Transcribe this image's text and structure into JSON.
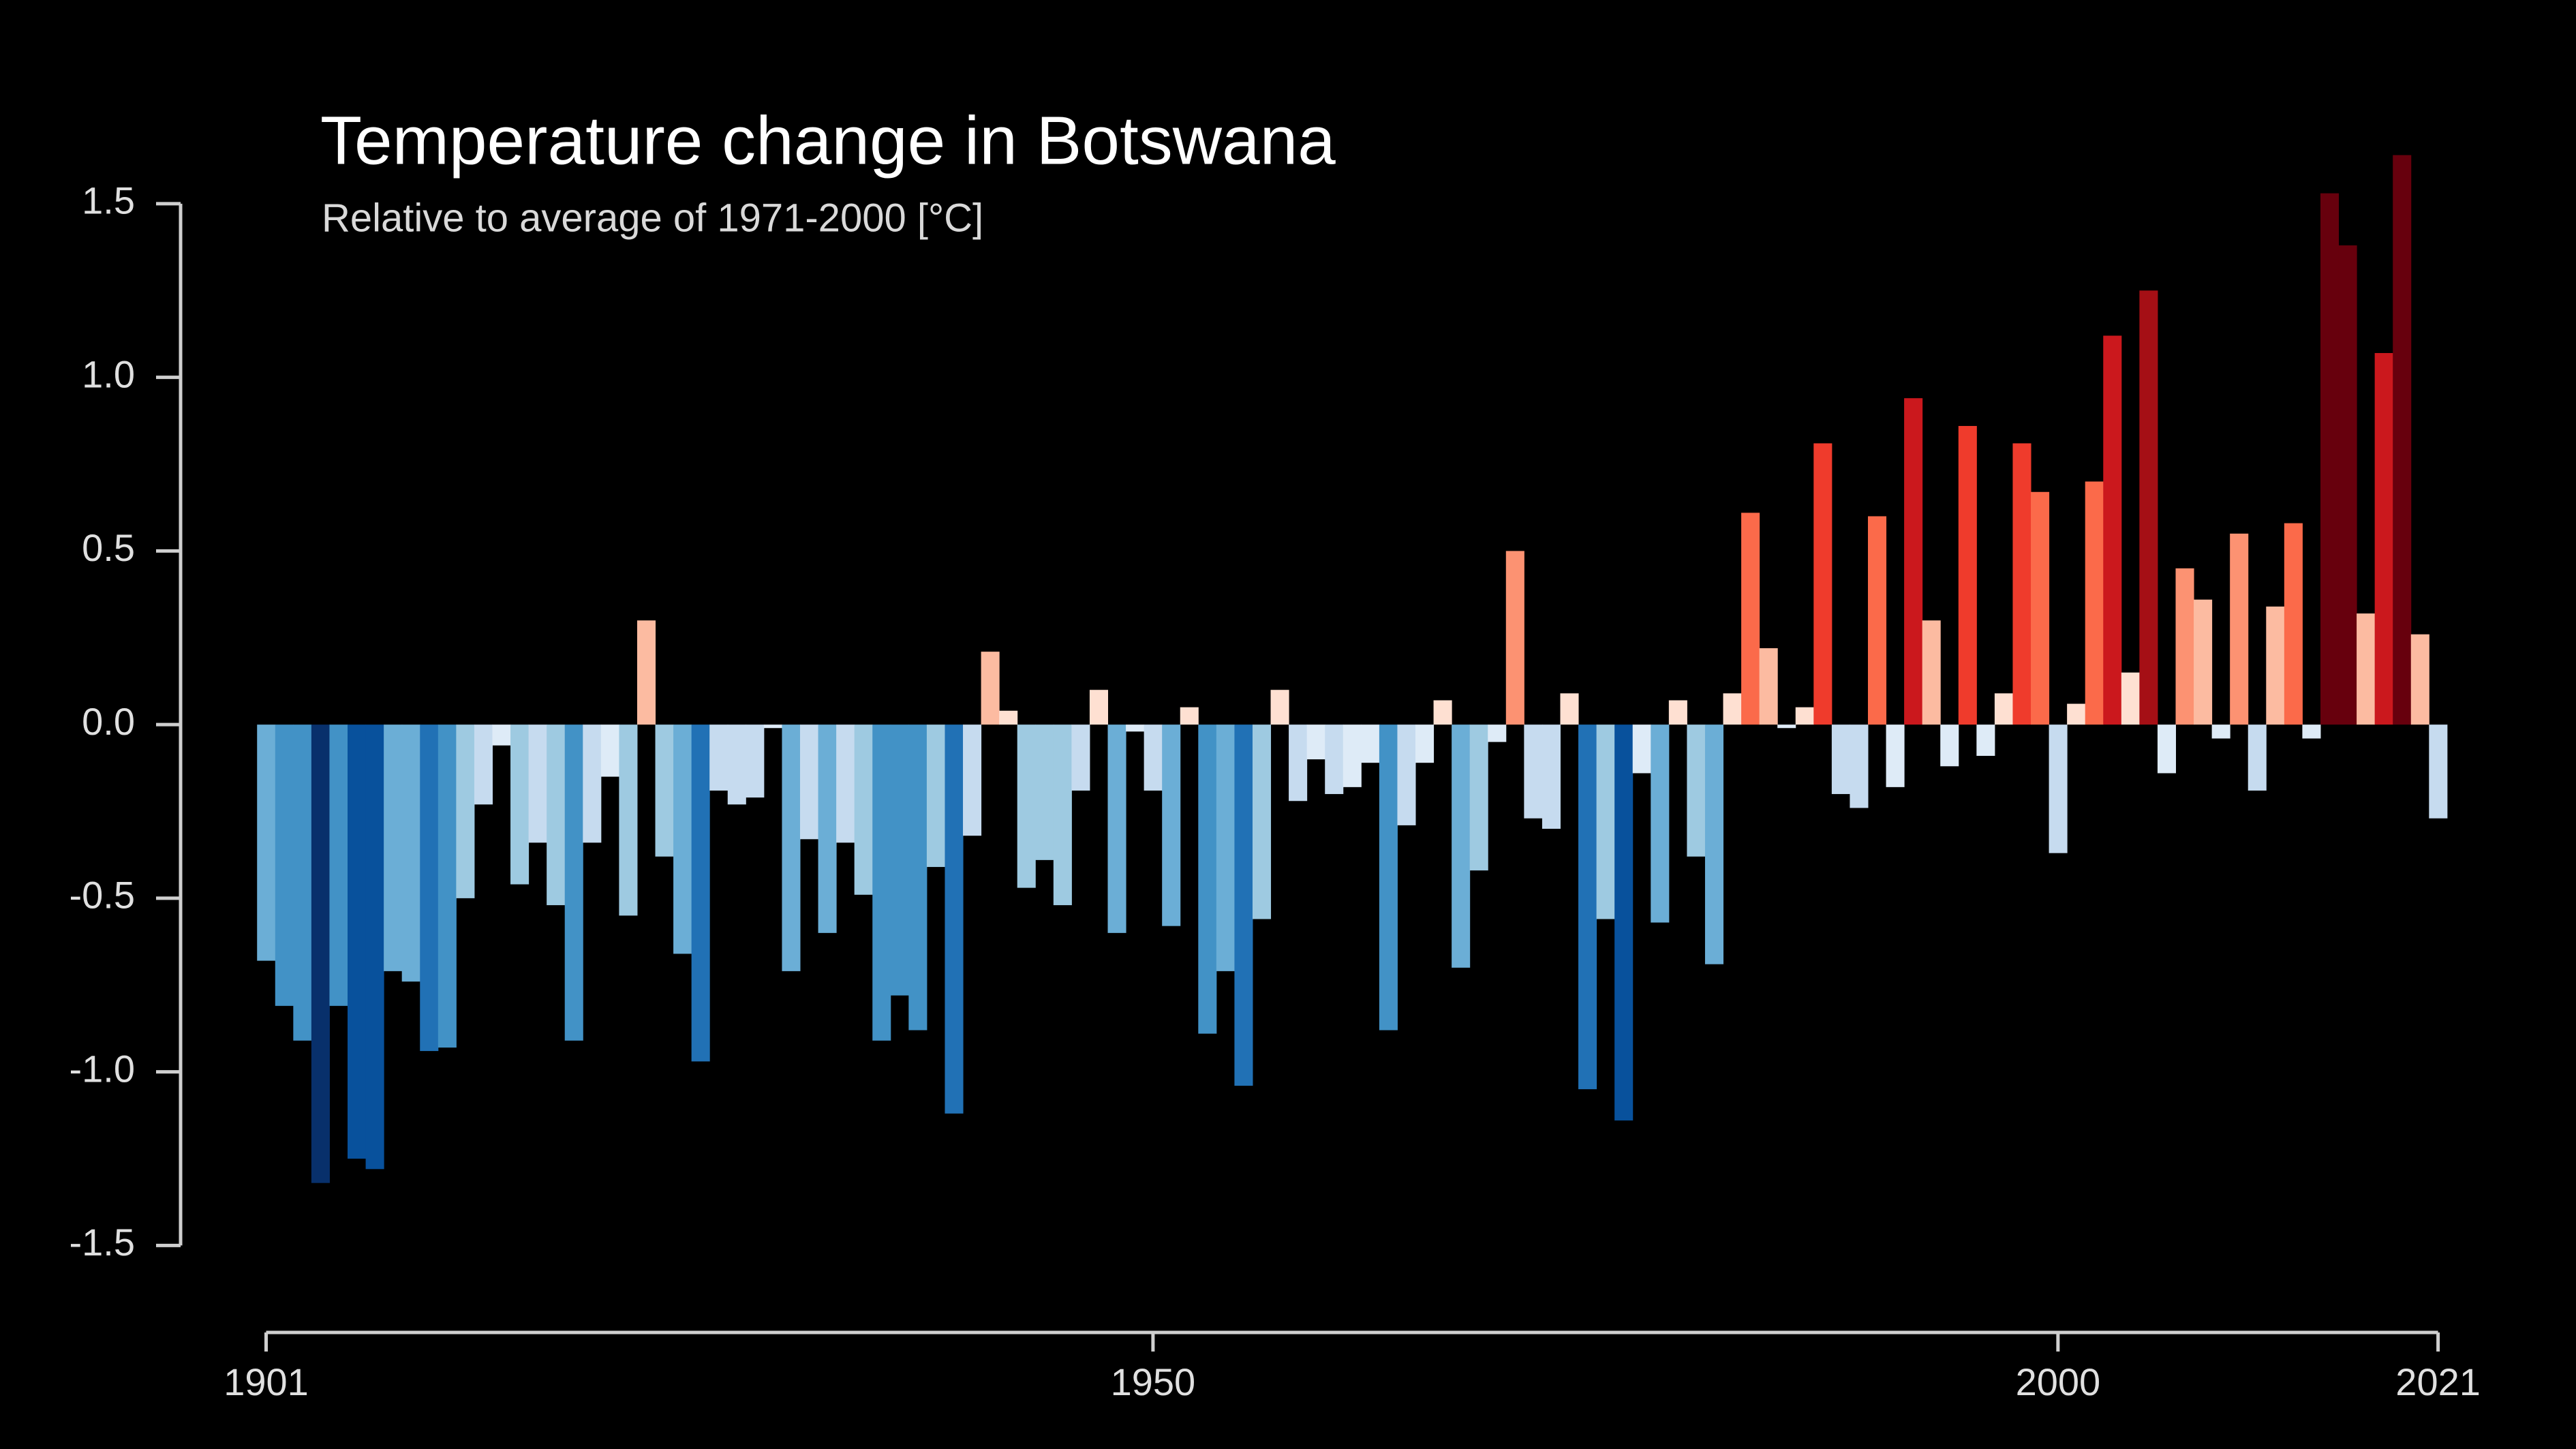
{
  "chart_data": {
    "type": "bar",
    "title": "Temperature change in Botswana",
    "subtitle": "Relative to average of 1971-2000  [°C]",
    "x": [
      1901,
      1902,
      1903,
      1904,
      1905,
      1906,
      1907,
      1908,
      1909,
      1910,
      1911,
      1912,
      1913,
      1914,
      1915,
      1916,
      1917,
      1918,
      1919,
      1920,
      1921,
      1922,
      1923,
      1924,
      1925,
      1926,
      1927,
      1928,
      1929,
      1930,
      1931,
      1932,
      1933,
      1934,
      1935,
      1936,
      1937,
      1938,
      1939,
      1940,
      1941,
      1942,
      1943,
      1944,
      1945,
      1946,
      1947,
      1948,
      1949,
      1950,
      1951,
      1952,
      1953,
      1954,
      1955,
      1956,
      1957,
      1958,
      1959,
      1960,
      1961,
      1962,
      1963,
      1964,
      1965,
      1966,
      1967,
      1968,
      1969,
      1970,
      1971,
      1972,
      1973,
      1974,
      1975,
      1976,
      1977,
      1978,
      1979,
      1980,
      1981,
      1982,
      1983,
      1984,
      1985,
      1986,
      1987,
      1988,
      1989,
      1990,
      1991,
      1992,
      1993,
      1994,
      1995,
      1996,
      1997,
      1998,
      1999,
      2000,
      2001,
      2002,
      2003,
      2004,
      2005,
      2006,
      2007,
      2008,
      2009,
      2010,
      2011,
      2012,
      2013,
      2014,
      2015,
      2016,
      2017,
      2018,
      2019,
      2020,
      2021
    ],
    "values": [
      -0.68,
      -0.81,
      -0.91,
      -1.32,
      -0.81,
      -1.25,
      -1.28,
      -0.71,
      -0.74,
      -0.94,
      -0.93,
      -0.5,
      -0.23,
      -0.06,
      -0.46,
      -0.34,
      -0.52,
      -0.91,
      -0.34,
      -0.15,
      -0.55,
      0.3,
      -0.38,
      -0.66,
      -0.97,
      -0.19,
      -0.23,
      -0.21,
      -0.01,
      -0.71,
      -0.33,
      -0.6,
      -0.34,
      -0.49,
      -0.91,
      -0.78,
      -0.88,
      -0.41,
      -1.12,
      -0.32,
      0.21,
      0.04,
      -0.47,
      -0.39,
      -0.52,
      -0.19,
      0.1,
      -0.6,
      -0.02,
      -0.19,
      -0.58,
      0.05,
      -0.89,
      -0.71,
      -1.04,
      -0.56,
      0.1,
      -0.22,
      -0.1,
      -0.2,
      -0.18,
      -0.11,
      -0.88,
      -0.29,
      -0.11,
      0.07,
      -0.7,
      -0.42,
      -0.05,
      0.5,
      -0.27,
      -0.3,
      0.09,
      -1.05,
      -0.56,
      -1.14,
      -0.14,
      -0.57,
      0.07,
      -0.38,
      -0.69,
      0.09,
      0.61,
      0.22,
      -0.01,
      0.05,
      0.81,
      -0.2,
      -0.24,
      0.6,
      -0.18,
      0.94,
      0.3,
      -0.12,
      0.86,
      -0.09,
      0.09,
      0.81,
      0.67,
      -0.37,
      0.06,
      0.7,
      1.12,
      0.15,
      1.25,
      -0.14,
      0.45,
      0.36,
      -0.04,
      0.55,
      -0.19,
      0.34,
      0.58,
      -0.04,
      1.53,
      1.38,
      0.32,
      1.07,
      1.64,
      0.26,
      -0.27
    ],
    "palette": [
      "#08306b",
      "#08519c",
      "#2171b5",
      "#4292c6",
      "#6baed6",
      "#9ecae1",
      "#c6dbef",
      "#deebf7",
      "#fee0d2",
      "#fcbba1",
      "#fc9272",
      "#fb6a4a",
      "#ef3b2c",
      "#cb181d",
      "#a50f15",
      "#67000d"
    ],
    "xlim": [
      1901,
      2021
    ],
    "xticks": [
      1901,
      1950,
      2000,
      2021
    ],
    "ylim": [
      -1.5,
      1.5
    ],
    "yticks": [
      -1.5,
      {
        "value": -1,
        "label": "-1.0"
      },
      -0.5,
      {
        "value": 0,
        "label": "0.0"
      },
      0.5,
      {
        "value": 1,
        "label": "1.0"
      },
      1.5
    ],
    "grid": false
  }
}
